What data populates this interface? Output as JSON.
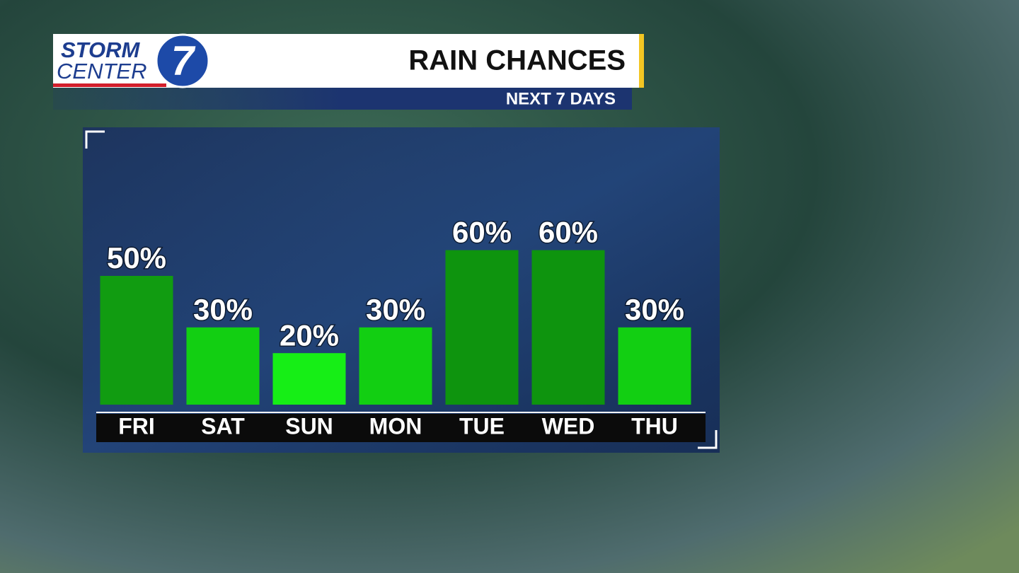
{
  "logo": {
    "line1": "STORM",
    "line2": "CENTER",
    "number": "7"
  },
  "chart_data": {
    "type": "bar",
    "title": "RAIN CHANCES",
    "subtitle": "NEXT 7 DAYS",
    "categories": [
      "FRI",
      "SAT",
      "SUN",
      "MON",
      "TUE",
      "WED",
      "THU"
    ],
    "values": [
      50,
      30,
      20,
      30,
      60,
      60,
      30
    ],
    "value_labels": [
      "50%",
      "30%",
      "20%",
      "30%",
      "60%",
      "60%",
      "30%"
    ],
    "colors": [
      "#119c11",
      "#12cf12",
      "#16ee16",
      "#12cf12",
      "#0e940e",
      "#0e940e",
      "#12cf12"
    ],
    "ylim": [
      0,
      100
    ]
  }
}
